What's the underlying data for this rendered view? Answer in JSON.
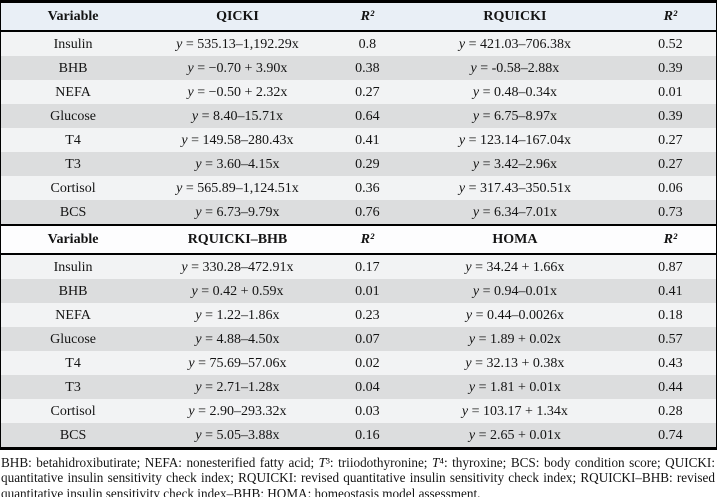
{
  "colors": {
    "header1_bg": "#e9eff6",
    "header2_bg": "#fdfdfe",
    "row_light": "#f2f3f4",
    "row_dark": "#dcddde",
    "border": "#000000",
    "text": "#141414"
  },
  "table": {
    "sections": [
      {
        "columns": [
          "Variable",
          "QICKI",
          "R²",
          "RQUICKI",
          "R²"
        ],
        "rows": [
          [
            "Insulin",
            "y = 535.13–1,192.29x",
            "0.8",
            "y = 421.03–706.38x",
            "0.52"
          ],
          [
            "BHB",
            "y = −0.70 + 3.90x",
            "0.38",
            "y = -0.58–2.88x",
            "0.39"
          ],
          [
            "NEFA",
            "y = −0.50 + 2.32x",
            "0.27",
            "y = 0.48–0.34x",
            "0.01"
          ],
          [
            "Glucose",
            "y = 8.40–15.71x",
            "0.64",
            "y = 6.75–8.97x",
            "0.39"
          ],
          [
            "T4",
            "y = 149.58–280.43x",
            "0.41",
            "y = 123.14–167.04x",
            "0.27"
          ],
          [
            "T3",
            "y = 3.60–4.15x",
            "0.29",
            "y = 3.42–2.96x",
            "0.27"
          ],
          [
            "Cortisol",
            "y = 565.89–1,124.51x",
            "0.36",
            "y = 317.43–350.51x",
            "0.06"
          ],
          [
            "BCS",
            "y = 6.73–9.79x",
            "0.76",
            "y = 6.34–7.01x",
            "0.73"
          ]
        ]
      },
      {
        "columns": [
          "Variable",
          "RQUICKI–BHB",
          "R²",
          "HOMA",
          "R²"
        ],
        "rows": [
          [
            "Insulin",
            "y = 330.28–472.91x",
            "0.17",
            "y = 34.24 + 1.66x",
            "0.87"
          ],
          [
            "BHB",
            "y = 0.42 + 0.59x",
            "0.01",
            "y = 0.94–0.01x",
            "0.41"
          ],
          [
            "NEFA",
            "y = 1.22–1.86x",
            "0.23",
            "y = 0.44–0.0026x",
            "0.18"
          ],
          [
            "Glucose",
            "y = 4.88–4.50x",
            "0.07",
            "y = 1.89 + 0.02x",
            "0.57"
          ],
          [
            "T4",
            "y = 75.69–57.06x",
            "0.02",
            "y = 32.13 + 0.38x",
            "0.43"
          ],
          [
            "T3",
            "y = 2.71–1.28x",
            "0.04",
            "y = 1.81 + 0.01x",
            "0.44"
          ],
          [
            "Cortisol",
            "y = 2.90–293.32x",
            "0.03",
            "y = 103.17 + 1.34x",
            "0.28"
          ],
          [
            "BCS",
            "y = 5.05–3.88x",
            "0.16",
            "y = 2.65 + 0.01x",
            "0.74"
          ]
        ]
      }
    ]
  },
  "footnote": "BHB: betahidroxibutirate; NEFA: nonesterified fatty acid; T³: triiodothyronine; T⁴: thyroxine; BCS: body condition score; QUICKI: quantitative insulin sensitivity check index; RQUICKI: revised quantitative insulin sensitivity check index; RQUICKI–BHB: revised quantitative insulin sensitivity check index–BHB; HOMA: homeostasis model assessment."
}
